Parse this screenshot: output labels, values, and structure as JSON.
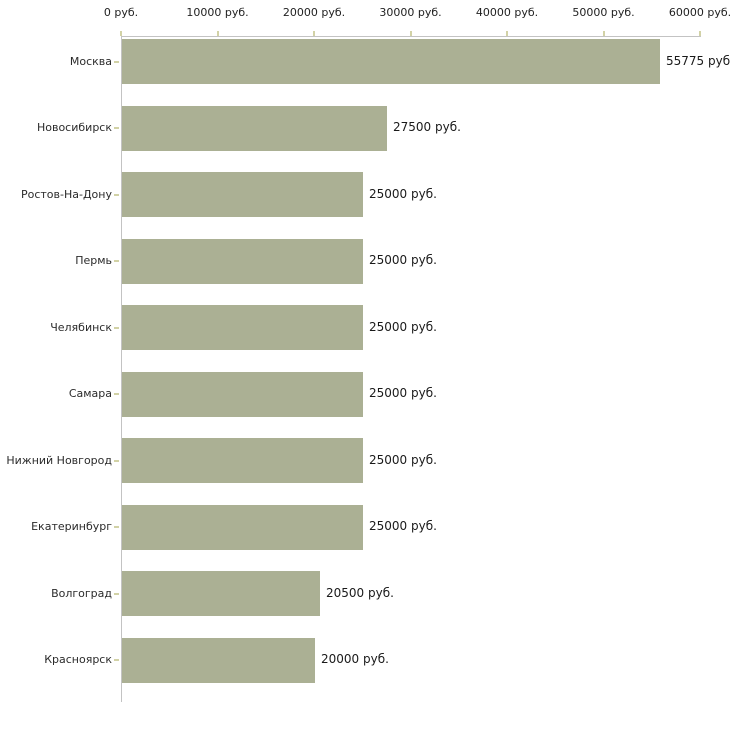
{
  "chart_data": {
    "type": "bar",
    "orientation": "horizontal",
    "title": "",
    "xlabel": "",
    "ylabel": "",
    "grid": false,
    "legend": null,
    "xlim": [
      0,
      60000
    ],
    "axis_position": "top",
    "categories": [
      "Москва",
      "Новосибирск",
      "Ростов-На-Дону",
      "Пермь",
      "Челябинск",
      "Самара",
      "Нижний Новгород",
      "Екатеринбург",
      "Волгоград",
      "Красноярск"
    ],
    "values": [
      55775,
      27500,
      25000,
      25000,
      25000,
      25000,
      25000,
      25000,
      20500,
      20000
    ],
    "value_labels": [
      "55775 руб.",
      "27500 руб.",
      "25000 руб.",
      "25000 руб.",
      "25000 руб.",
      "25000 руб.",
      "25000 руб.",
      "25000 руб.",
      "20500 руб.",
      "20000 руб."
    ],
    "x_axis": {
      "ticks": [
        0,
        10000,
        20000,
        30000,
        40000,
        50000,
        60000
      ],
      "tick_labels": [
        "0 руб.",
        "10000 руб.",
        "20000 руб.",
        "30000 руб.",
        "40000 руб.",
        "50000 руб.",
        "60000 руб."
      ]
    },
    "colors": {
      "bar_fill": "#abb094",
      "axis_line": "#c3c3c3",
      "tick_mark": "#d2d2a6",
      "label_text": "#2b2b2b",
      "value_text": "#1a1a1a",
      "background": "#ffffff"
    }
  }
}
